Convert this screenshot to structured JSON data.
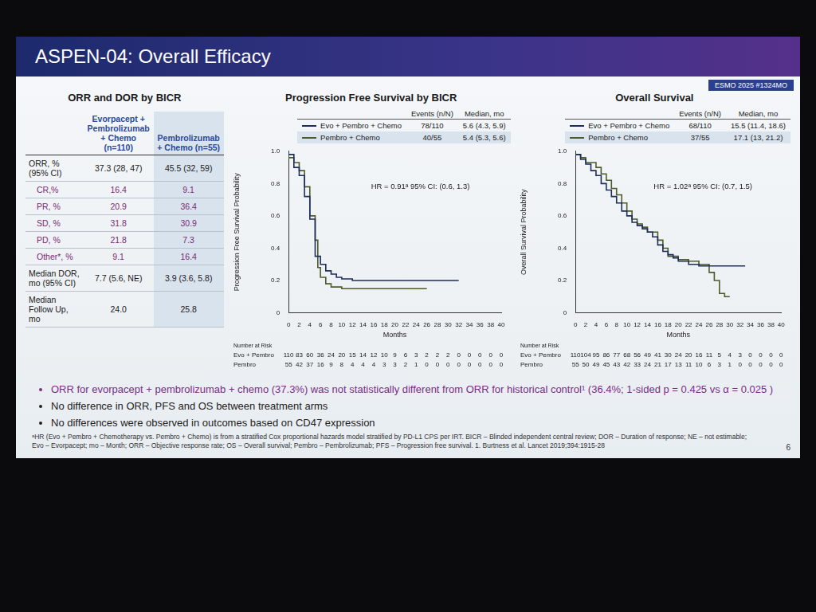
{
  "title": "ASPEN-04: Overall Efficacy",
  "tag": "ESMO 2025 #1324MO",
  "table": {
    "title": "ORR and DOR by BICR",
    "columns": [
      "Evorpacept + Pembrolizumab + Chemo (n=110)",
      "Pembrolizumab + Chemo (n=55)"
    ],
    "rows": [
      {
        "label": "ORR, % (95% CI)",
        "values": [
          "37.3 (28, 47)",
          "45.5 (32, 59)"
        ]
      },
      {
        "label": "CR,%",
        "values": [
          "16.4",
          "9.1"
        ]
      },
      {
        "label": "PR, %",
        "values": [
          "20.9",
          "36.4"
        ]
      },
      {
        "label": "SD, %",
        "values": [
          "31.8",
          "30.9"
        ]
      },
      {
        "label": "PD, %",
        "values": [
          "21.8",
          "7.3"
        ]
      },
      {
        "label": "Other*, %",
        "values": [
          "9.1",
          "16.4"
        ]
      },
      {
        "label": "Median DOR, mo (95% CI)",
        "values": [
          "7.7 (5.6, NE)",
          "3.9 (3.6, 5.8)"
        ]
      },
      {
        "label": "Median Follow Up, mo",
        "values": [
          "24.0",
          "25.8"
        ]
      }
    ]
  },
  "chart_data": [
    {
      "type": "line",
      "title": "Progression Free Survival by BICR",
      "xlabel": "Months",
      "ylabel": "Progression Free Survival Probability",
      "xlim": [
        0,
        40
      ],
      "xticks": [
        0,
        2,
        4,
        6,
        8,
        10,
        12,
        14,
        16,
        18,
        20,
        22,
        24,
        26,
        28,
        30,
        32,
        34,
        36,
        38,
        40
      ],
      "ylim": [
        0,
        1
      ],
      "yticks": [
        0,
        0.2,
        0.4,
        0.6,
        0.8,
        {
          "value": 1,
          "label": "1.0"
        }
      ],
      "grid": false,
      "legend": "top",
      "legend_columns": [
        "Events (n/N)",
        "Median, mo"
      ],
      "annotation": "HR = 0.91ᵃ 95% CI: (0.6, 1.3)",
      "series": [
        {
          "name": "Evo + Pembro + Chemo",
          "color": "#1f2d5c",
          "line_style": "step",
          "marker": "none",
          "events": "78/110",
          "median": "5.6 (4.3, 5.9)",
          "x": [
            0,
            1,
            2,
            3,
            4,
            5,
            6,
            7,
            8,
            9,
            10,
            12,
            14,
            18,
            32
          ],
          "values": [
            1,
            0.98,
            0.9,
            0.85,
            0.72,
            0.58,
            0.35,
            0.3,
            0.26,
            0.24,
            0.22,
            0.21,
            0.2,
            0.2,
            0.2
          ]
        },
        {
          "name": "Pembro + Chemo",
          "color": "#4d5a2b",
          "line_style": "step",
          "marker": "none",
          "events": "40/55",
          "median": "5.4 (5.3, 5.6)",
          "x": [
            0,
            1,
            2,
            3,
            4,
            5,
            5.5,
            6,
            7,
            8,
            10,
            12,
            16,
            26
          ],
          "values": [
            1,
            0.96,
            0.93,
            0.88,
            0.78,
            0.6,
            0.45,
            0.28,
            0.22,
            0.18,
            0.16,
            0.15,
            0.15,
            0.15
          ]
        }
      ],
      "at_risk": {
        "title": "Number at Risk",
        "times": [
          0,
          2,
          4,
          6,
          8,
          10,
          12,
          14,
          16,
          18,
          20,
          22,
          24,
          26,
          28,
          30,
          32,
          34,
          36,
          38,
          40
        ],
        "rows": [
          {
            "name": "Evo + Pembro",
            "values": [
              110,
              83,
              60,
              36,
              24,
              20,
              15,
              14,
              12,
              10,
              9,
              6,
              3,
              2,
              2,
              2,
              0,
              0,
              0,
              0,
              0
            ]
          },
          {
            "name": "Pembro",
            "values": [
              55,
              42,
              37,
              16,
              9,
              8,
              4,
              4,
              4,
              3,
              3,
              2,
              1,
              0,
              0,
              0,
              0,
              0,
              0,
              0,
              0
            ]
          }
        ]
      }
    },
    {
      "type": "line",
      "title": "Overall Survival",
      "xlabel": "Months",
      "ylabel": "Overall Survival Probability",
      "xlim": [
        0,
        40
      ],
      "xticks": [
        0,
        2,
        4,
        6,
        8,
        10,
        12,
        14,
        16,
        18,
        20,
        22,
        24,
        26,
        28,
        30,
        32,
        34,
        36,
        38,
        40
      ],
      "ylim": [
        0,
        1
      ],
      "yticks": [
        0,
        0.2,
        0.4,
        0.6,
        0.8,
        {
          "value": 1,
          "label": "1.0"
        }
      ],
      "grid": false,
      "legend": "top",
      "legend_columns": [
        "Events (n/N)",
        "Median, mo"
      ],
      "annotation": "HR = 1.02ᵃ 95% CI: (0.7, 1.5)",
      "series": [
        {
          "name": "Evo + Pembro + Chemo",
          "color": "#1f2d5c",
          "line_style": "step",
          "marker": "none",
          "events": "68/110",
          "median": "15.5 (11.4, 18.6)",
          "x": [
            0,
            1,
            2,
            3,
            4,
            5,
            6,
            7,
            8,
            9,
            10,
            11,
            12,
            13,
            14,
            15,
            16,
            17,
            18,
            19,
            20,
            22,
            24,
            26,
            28,
            33
          ],
          "values": [
            1,
            0.98,
            0.95,
            0.92,
            0.88,
            0.85,
            0.8,
            0.76,
            0.72,
            0.68,
            0.63,
            0.6,
            0.56,
            0.54,
            0.52,
            0.5,
            0.47,
            0.42,
            0.38,
            0.36,
            0.34,
            0.32,
            0.3,
            0.29,
            0.29,
            0.29
          ]
        },
        {
          "name": "Pembro + Chemo",
          "color": "#4d5a2b",
          "line_style": "step",
          "marker": "none",
          "events": "37/55",
          "median": "17.1 (13, 21.2)",
          "x": [
            0,
            1,
            2,
            4,
            5,
            6,
            7,
            8,
            9,
            10,
            11,
            12,
            13,
            14,
            16,
            17,
            18,
            20,
            22,
            24,
            26,
            27,
            28,
            29,
            30
          ],
          "values": [
            1,
            0.98,
            0.96,
            0.93,
            0.9,
            0.86,
            0.82,
            0.77,
            0.73,
            0.68,
            0.63,
            0.58,
            0.55,
            0.53,
            0.5,
            0.45,
            0.4,
            0.35,
            0.33,
            0.32,
            0.3,
            0.25,
            0.2,
            0.12,
            0.1
          ]
        }
      ],
      "at_risk": {
        "title": "Number at Risk",
        "times": [
          0,
          2,
          4,
          6,
          8,
          10,
          12,
          14,
          16,
          18,
          20,
          22,
          24,
          26,
          28,
          30,
          32,
          34,
          36,
          38,
          40
        ],
        "rows": [
          {
            "name": "Evo + Pembro",
            "values": [
              110,
              104,
              95,
              86,
              77,
              68,
              56,
              49,
              41,
              30,
              24,
              20,
              16,
              11,
              5,
              4,
              3,
              0,
              0,
              0,
              0
            ]
          },
          {
            "name": "Pembro",
            "values": [
              55,
              50,
              49,
              45,
              43,
              42,
              33,
              24,
              21,
              17,
              13,
              11,
              10,
              6,
              3,
              1,
              0,
              0,
              0,
              0,
              0
            ]
          }
        ]
      }
    }
  ],
  "bullets": [
    "ORR for evorpacept + pembrolizumab + chemo (37.3%) was not statistically different from ORR for historical control¹ (36.4%; 1-sided p = 0.425 vs α = 0.025 )",
    "No difference in ORR, PFS and OS between treatment arms",
    "No differences were observed in outcomes based on CD47 expression"
  ],
  "footnote": "ᵃHR (Evo + Pembro + Chemotherapy vs. Pembro + Chemo) is from a stratified Cox proportional hazards model stratified by PD-L1 CPS per IRT. BICR – Blinded independent central review; DOR – Duration of response; NE – not estimable; Evo – Evorpacept; mo – Month; ORR – Objective response rate; OS – Overall survival; Pembro – Pembrolizumab; PFS – Progression free survival. 1. Burtness et al. Lancet 2019;394:1915-28",
  "page_number": "6"
}
